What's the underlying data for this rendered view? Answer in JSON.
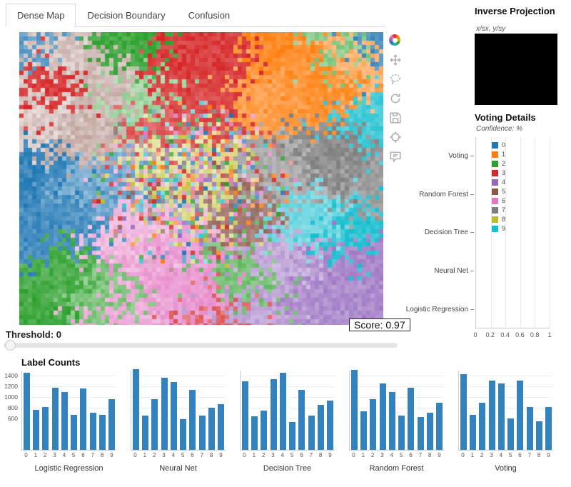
{
  "tabs": {
    "items": [
      {
        "label": "Dense Map",
        "active": true
      },
      {
        "label": "Decision Boundary",
        "active": false
      },
      {
        "label": "Confusion",
        "active": false
      }
    ]
  },
  "toolbar": {
    "icons": [
      "bokeh-logo",
      "pan",
      "lasso-select",
      "refresh",
      "save",
      "crosshair",
      "hover"
    ]
  },
  "map": {
    "score_label": "Score: 0.97"
  },
  "threshold": {
    "label": "Threshold:",
    "value": "0"
  },
  "inverse_projection": {
    "title": "Inverse Projection",
    "subtitle": "x/sx, y/sy"
  },
  "voting_details": {
    "title": "Voting Details",
    "axis_note": "Confidence: %",
    "categories": [
      "Voting",
      "Random Forest",
      "Decision Tree",
      "Neural Net",
      "Logistic Regression"
    ],
    "x_ticks": [
      "0",
      "0.2",
      "0.4",
      "0.6",
      "0.8",
      "1"
    ],
    "legend": [
      {
        "label": "0",
        "color": "#1f77b4"
      },
      {
        "label": "1",
        "color": "#ff7f0e"
      },
      {
        "label": "2",
        "color": "#2ca02c"
      },
      {
        "label": "3",
        "color": "#d62728"
      },
      {
        "label": "4",
        "color": "#9467bd"
      },
      {
        "label": "5",
        "color": "#8c564b"
      },
      {
        "label": "6",
        "color": "#e377c2"
      },
      {
        "label": "7",
        "color": "#7f7f7f"
      },
      {
        "label": "8",
        "color": "#bcbd22"
      },
      {
        "label": "9",
        "color": "#17becf"
      }
    ]
  },
  "label_counts": {
    "title": "Label Counts"
  },
  "chart_data": [
    {
      "type": "bar",
      "orientation": "horizontal",
      "title": "Voting Details",
      "xlabel": "Confidence: %",
      "xlim": [
        0,
        1
      ],
      "x_ticks": [
        0,
        0.2,
        0.4,
        0.6,
        0.8,
        1
      ],
      "categories": [
        "Voting",
        "Random Forest",
        "Decision Tree",
        "Neural Net",
        "Logistic Regression"
      ],
      "values": [],
      "legend_entries": [
        "0",
        "1",
        "2",
        "3",
        "4",
        "5",
        "6",
        "7",
        "8",
        "9"
      ],
      "note": "plot area currently empty; legend and gridlines only"
    },
    {
      "type": "bar",
      "title": "Label Counts",
      "x_categories": [
        "0",
        "1",
        "2",
        "3",
        "4",
        "5",
        "6",
        "7",
        "8",
        "9"
      ],
      "ylim": [
        0,
        1500
      ],
      "y_ticks": [
        600,
        800,
        1000,
        1200,
        1400
      ],
      "bar_color": "#3182bd",
      "series": [
        {
          "name": "Logistic Regression",
          "values": [
            1450,
            750,
            800,
            1170,
            1080,
            650,
            1150,
            690,
            660,
            950
          ]
        },
        {
          "name": "Neural Net",
          "values": [
            1520,
            640,
            950,
            1350,
            1270,
            580,
            1130,
            640,
            790,
            860
          ]
        },
        {
          "name": "Decision Tree",
          "values": [
            1290,
            630,
            740,
            1330,
            1450,
            520,
            1120,
            640,
            840,
            930
          ]
        },
        {
          "name": "Random Forest",
          "values": [
            1500,
            720,
            950,
            1250,
            1090,
            640,
            1160,
            620,
            700,
            890
          ]
        },
        {
          "name": "Voting",
          "values": [
            1420,
            650,
            880,
            1300,
            1240,
            590,
            1300,
            800,
            540,
            810
          ]
        }
      ]
    }
  ]
}
